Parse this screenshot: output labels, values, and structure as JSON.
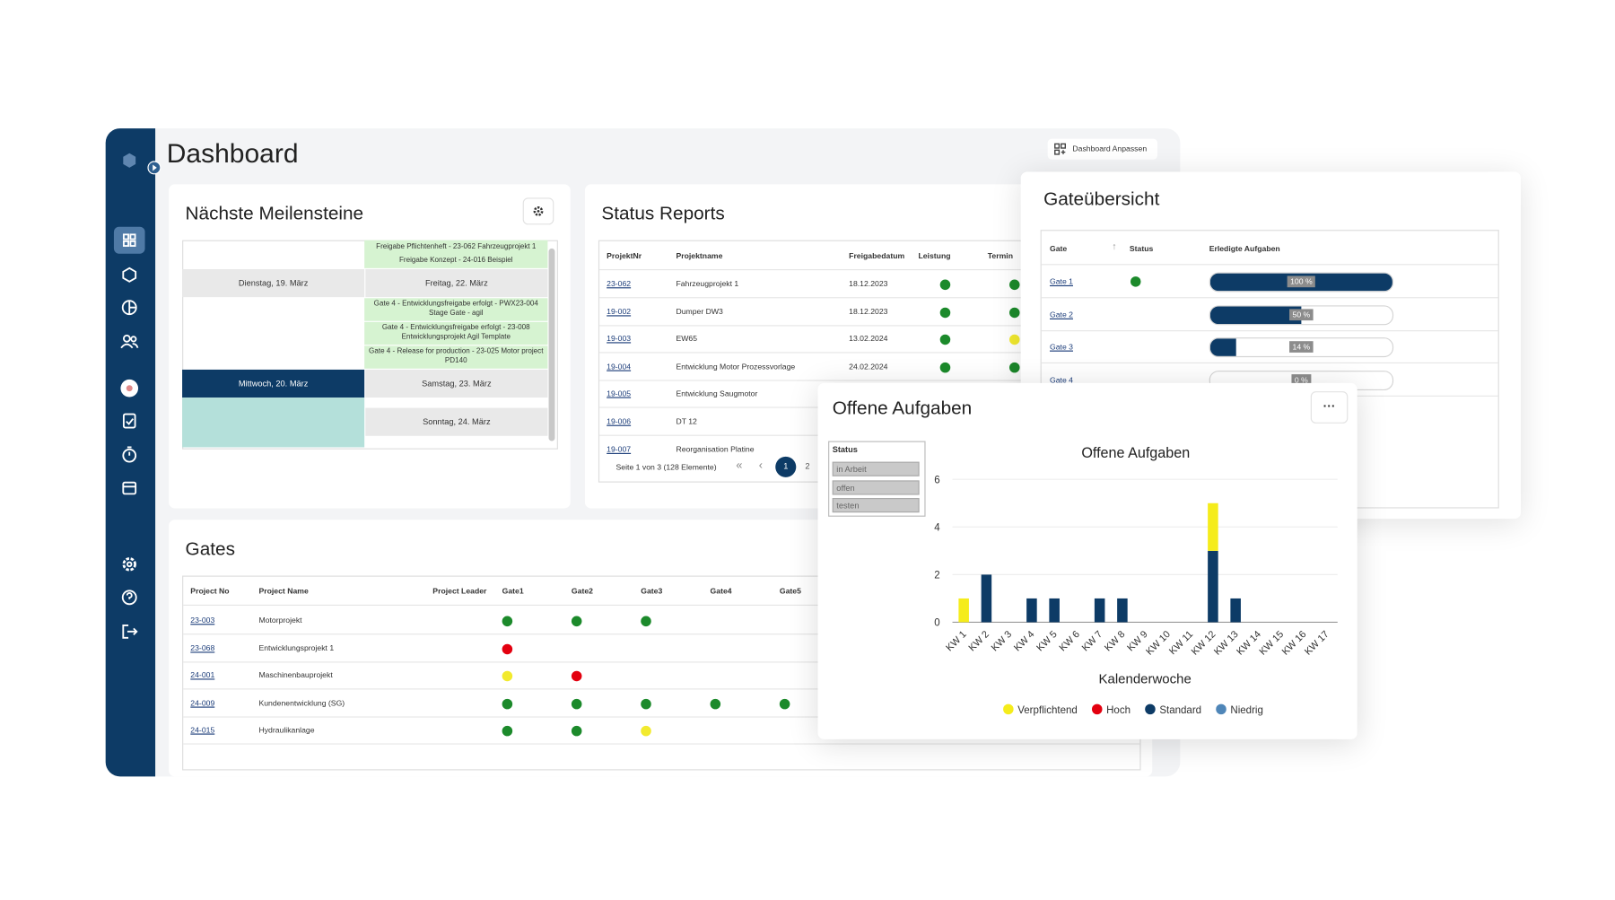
{
  "header": {
    "title": "Dashboard",
    "customize_button": "Dashboard Anpassen"
  },
  "milestones": {
    "title": "Nächste Meilensteine",
    "entries_top": [
      "Freigabe Pflichtenheft - 23-062 Fahrzeugprojekt 1",
      "Freigabe Konzept - 24-016 Beispiel"
    ],
    "dates": [
      "Dienstag, 19. März",
      "Freitag, 22. März",
      "Mittwoch, 20. März",
      "Samstag, 23. März",
      "Sonntag, 24. März"
    ],
    "entries_mid": [
      "Gate 4 - Entwicklungsfreigabe erfolgt - PWX23-004 Stage Gate - agil",
      "Gate 4 - Entwicklungsfreigabe erfolgt - 23-008 Entwicklungsprojekt Agil Template",
      "Gate 4 - Release for production - 23-025 Motor project PD140"
    ]
  },
  "status_reports": {
    "title": "Status Reports",
    "columns": [
      "ProjektNr",
      "Projektname",
      "Freigabedatum",
      "Leistung",
      "Termin"
    ],
    "rows": [
      [
        "23-062",
        "Fahrzeugprojekt 1",
        "18.12.2023",
        "#1c8a2b",
        "#1c8a2b"
      ],
      [
        "19-002",
        "Dumper DW3",
        "18.12.2023",
        "#1c8a2b",
        "#1c8a2b"
      ],
      [
        "19-003",
        "EW65",
        "13.02.2024",
        "#1c8a2b",
        "#f2ea2e"
      ],
      [
        "19-004",
        "Entwicklung Motor Prozessvorlage",
        "24.02.2024",
        "#1c8a2b",
        "#1c8a2b"
      ],
      [
        "19-005",
        "Entwicklung Saugmotor",
        null,
        null,
        null
      ],
      [
        "19-006",
        "DT 12",
        null,
        null,
        null
      ],
      [
        "19-007",
        "Reorganisation Platine",
        null,
        null,
        null
      ]
    ],
    "pagination": "Seite 1 von 3 (128 Elemente)",
    "pages": [
      "1",
      "2"
    ]
  },
  "gates": {
    "title": "Gates",
    "columns": [
      "Project No",
      "Project Name",
      "Project Leader",
      "Gate1",
      "Gate2",
      "Gate3",
      "Gate4",
      "Gate5"
    ],
    "rows": [
      [
        "23-003",
        "Motorprojekt",
        null,
        "#1c8a2b",
        "#1c8a2b",
        "#1c8a2b",
        null,
        null
      ],
      [
        "23-068",
        "Entwicklungsprojekt 1",
        null,
        "#e3000f",
        null,
        null,
        null,
        null
      ],
      [
        "24-001",
        "Maschinenbauprojekt",
        null,
        "#f2ea2e",
        "#e3000f",
        null,
        null,
        null
      ],
      [
        "24-009",
        "Kundenentwicklung (SG)",
        null,
        "#1c8a2b",
        "#1c8a2b",
        "#1c8a2b",
        "#1c8a2b",
        "#1c8a2b"
      ],
      [
        "24-015",
        "Hydraulikanlage",
        null,
        "#1c8a2b",
        "#1c8a2b",
        "#f2ea2e",
        null,
        null
      ]
    ]
  },
  "gate_overview": {
    "title": "Gateübersicht",
    "columns": [
      "Gate",
      "Status",
      "Erledigte Aufgaben"
    ],
    "rows": [
      {
        "gate": "Gate 1",
        "status": "#1c8a2b",
        "progress": 100,
        "progress_label": "100 %"
      },
      {
        "gate": "Gate 2",
        "status": null,
        "progress": 50,
        "progress_label": "50 %"
      },
      {
        "gate": "Gate 3",
        "status": null,
        "progress": 14,
        "progress_label": "14 %"
      },
      {
        "gate": "Gate 4",
        "status": null,
        "progress": 0,
        "progress_label": "0 %"
      }
    ]
  },
  "open_tasks": {
    "title": "Offene Aufgaben",
    "menu": "···",
    "filter": {
      "title": "Status",
      "options": [
        "in Arbeit",
        "offen",
        "testen"
      ]
    }
  },
  "chart_data": {
    "type": "bar",
    "stacked": true,
    "title": "Offene Aufgaben",
    "x_label": "Kalenderwoche",
    "categories": [
      "KW 1",
      "KW 2",
      "KW 3",
      "KW 4",
      "KW 5",
      "KW 6",
      "KW 7",
      "KW 8",
      "KW 9",
      "KW 10",
      "KW 11",
      "KW 12",
      "KW 13",
      "KW 14",
      "KW 15",
      "KW 16",
      "KW 17"
    ],
    "series": [
      {
        "name": "Verpflichtend",
        "color": "#f5ec1b",
        "values": [
          1,
          0,
          0,
          0,
          0,
          0,
          0,
          0,
          0,
          0,
          0,
          2,
          0,
          0,
          0,
          0,
          0
        ]
      },
      {
        "name": "Hoch",
        "color": "#e3000f",
        "values": [
          0,
          0,
          0,
          0,
          0,
          0,
          0,
          0,
          0,
          0,
          0,
          0,
          0,
          0,
          0,
          0,
          0
        ]
      },
      {
        "name": "Standard",
        "color": "#0d3b66",
        "values": [
          0,
          2,
          0,
          1,
          1,
          0,
          1,
          1,
          0,
          0,
          0,
          3,
          1,
          0,
          0,
          0,
          0
        ]
      },
      {
        "name": "Niedrig",
        "color": "#4f86b8",
        "values": [
          0,
          0,
          0,
          0,
          0,
          0,
          0,
          0,
          0,
          0,
          0,
          0,
          0,
          0,
          0,
          0,
          0
        ]
      }
    ],
    "ylim": [
      0,
      6
    ],
    "yticks": [
      0,
      2,
      4,
      6
    ],
    "grid": true,
    "legend": "bottom"
  }
}
